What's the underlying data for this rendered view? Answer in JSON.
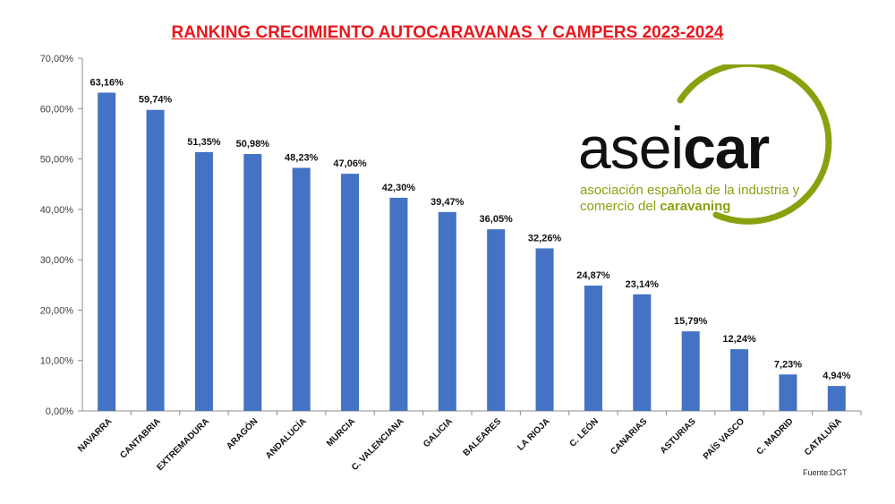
{
  "title": "RANKING CRECIMIENTO AUTOCARAVANAS Y CAMPERS 2023-2024",
  "source": "Fuente:DGT",
  "logo": {
    "word_light": "asei",
    "word_bold": "car",
    "line1": "asociación española de la industria y",
    "line2_a": "comercio del ",
    "line2_b": "caravaning",
    "color_green": "#8aa10f"
  },
  "colors": {
    "bar": "#4472c4",
    "title": "#e8161b"
  },
  "chart_data": {
    "type": "bar",
    "categories": [
      "NAVARRA",
      "CANTABRIA",
      "EXTREMADURA",
      "ARAGÓN",
      "ANDALUCÍA",
      "MURCIA",
      "C. VALENCIANA",
      "GALICIA",
      "BALEARES",
      "LA RIOJA",
      "C. LEÓN",
      "CANARIAS",
      "ASTURIAS",
      "PAÍS VASCO",
      "C. MADRID",
      "CATALUÑA"
    ],
    "values": [
      63.16,
      59.74,
      51.35,
      50.98,
      48.23,
      47.06,
      42.3,
      39.47,
      36.05,
      32.26,
      24.87,
      23.14,
      15.79,
      12.24,
      7.23,
      4.94
    ],
    "data_labels": [
      "63,16%",
      "59,74%",
      "51,35%",
      "50,98%",
      "48,23%",
      "47,06%",
      "42,30%",
      "39,47%",
      "36,05%",
      "32,26%",
      "24,87%",
      "23,14%",
      "15,79%",
      "12,24%",
      "7,23%",
      "4,94%"
    ],
    "yticks": [
      "0,00%",
      "10,00%",
      "20,00%",
      "30,00%",
      "40,00%",
      "50,00%",
      "60,00%",
      "70,00%"
    ],
    "ylim": [
      0,
      70
    ],
    "grid": false,
    "legend": false
  }
}
